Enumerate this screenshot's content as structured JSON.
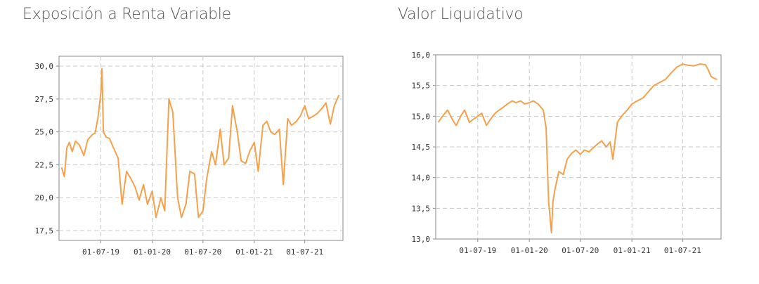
{
  "chart_data": [
    {
      "type": "line",
      "title": "Exposición a Renta Variable",
      "xlabel": "",
      "ylabel": "",
      "x_ticks": [
        "01-07-19",
        "01-01-20",
        "01-07-20",
        "01-01-21",
        "01-07-21"
      ],
      "y_ticks": [
        "30,0",
        "27,5",
        "25,0",
        "22,5",
        "20,0",
        "17,5"
      ],
      "ylim": [
        16.75,
        30.75
      ],
      "xlim": [
        "2019-02-01",
        "2021-11-15"
      ],
      "grid": true,
      "line_color": "#f7a04a",
      "series": [
        {
          "x": [
            "2019-02-10",
            "2019-02-20",
            "2019-03-01",
            "2019-03-10",
            "2019-03-20",
            "2019-04-01",
            "2019-04-15",
            "2019-05-01",
            "2019-05-15",
            "2019-06-01",
            "2019-06-10",
            "2019-06-20",
            "2019-07-01",
            "2019-07-05",
            "2019-07-10",
            "2019-07-20",
            "2019-08-01",
            "2019-08-15",
            "2019-09-01",
            "2019-09-15",
            "2019-10-01",
            "2019-10-15",
            "2019-11-01",
            "2019-11-15",
            "2019-12-01",
            "2019-12-15",
            "2020-01-01",
            "2020-01-15",
            "2020-02-01",
            "2020-02-15",
            "2020-03-01",
            "2020-03-15",
            "2020-04-01",
            "2020-04-15",
            "2020-05-01",
            "2020-05-15",
            "2020-06-01",
            "2020-06-15",
            "2020-07-01",
            "2020-07-15",
            "2020-08-01",
            "2020-08-15",
            "2020-09-01",
            "2020-09-15",
            "2020-10-01",
            "2020-10-15",
            "2020-11-01",
            "2020-11-15",
            "2020-12-01",
            "2020-12-15",
            "2021-01-01",
            "2021-01-15",
            "2021-02-01",
            "2021-02-15",
            "2021-03-01",
            "2021-03-15",
            "2021-04-01",
            "2021-04-15",
            "2021-05-01",
            "2021-05-15",
            "2021-06-01",
            "2021-06-15",
            "2021-07-01",
            "2021-07-15",
            "2021-08-01",
            "2021-08-15",
            "2021-09-01",
            "2021-09-15",
            "2021-10-01",
            "2021-10-15",
            "2021-11-01"
          ],
          "y": [
            22.3,
            21.6,
            23.8,
            24.2,
            23.5,
            24.3,
            24.0,
            23.2,
            24.4,
            24.8,
            24.9,
            26.0,
            28.0,
            29.8,
            25.0,
            24.6,
            24.5,
            23.8,
            23.0,
            19.5,
            22.0,
            21.5,
            20.8,
            19.8,
            21.0,
            19.5,
            20.5,
            18.5,
            20.0,
            19.0,
            27.5,
            26.5,
            20.0,
            18.5,
            19.5,
            22.0,
            21.8,
            18.5,
            19.0,
            21.5,
            23.5,
            22.5,
            25.2,
            22.5,
            23.0,
            27.0,
            25.0,
            22.8,
            22.6,
            23.5,
            24.2,
            22.0,
            25.5,
            25.8,
            25.0,
            24.8,
            25.2,
            21.0,
            26.0,
            25.5,
            25.8,
            26.2,
            27.0,
            26.0,
            26.2,
            26.4,
            26.8,
            27.2,
            25.6,
            27.0,
            27.8
          ]
        }
      ]
    },
    {
      "type": "line",
      "title": "Valor Liquidativo",
      "xlabel": "",
      "ylabel": "",
      "x_ticks": [
        "01-07-19",
        "01-01-20",
        "01-07-20",
        "01-01-21",
        "01-07-21"
      ],
      "y_ticks": [
        "16,0",
        "15,5",
        "15,0",
        "14,5",
        "14,0",
        "13,5",
        "13,0"
      ],
      "ylim": [
        13.0,
        16.0
      ],
      "xlim": [
        "2019-02-01",
        "2021-11-15"
      ],
      "grid": true,
      "line_color": "#f7a04a",
      "series": [
        {
          "x": [
            "2019-02-10",
            "2019-02-25",
            "2019-03-15",
            "2019-04-01",
            "2019-04-15",
            "2019-05-01",
            "2019-05-15",
            "2019-06-01",
            "2019-06-15",
            "2019-07-01",
            "2019-07-15",
            "2019-08-01",
            "2019-08-15",
            "2019-09-01",
            "2019-09-15",
            "2019-10-01",
            "2019-10-15",
            "2019-11-01",
            "2019-11-15",
            "2019-12-01",
            "2019-12-15",
            "2020-01-01",
            "2020-01-15",
            "2020-02-01",
            "2020-02-20",
            "2020-03-01",
            "2020-03-10",
            "2020-03-20",
            "2020-03-25",
            "2020-04-01",
            "2020-04-15",
            "2020-05-01",
            "2020-05-15",
            "2020-06-01",
            "2020-06-15",
            "2020-07-01",
            "2020-07-15",
            "2020-08-01",
            "2020-08-15",
            "2020-09-01",
            "2020-09-15",
            "2020-10-01",
            "2020-10-15",
            "2020-10-25",
            "2020-11-10",
            "2020-11-25",
            "2020-12-15",
            "2021-01-01",
            "2021-01-20",
            "2021-02-10",
            "2021-03-01",
            "2021-03-20",
            "2021-04-10",
            "2021-05-01",
            "2021-05-20",
            "2021-06-10",
            "2021-07-01",
            "2021-07-20",
            "2021-08-10",
            "2021-09-01",
            "2021-09-20",
            "2021-10-01",
            "2021-10-10",
            "2021-10-20",
            "2021-11-01"
          ],
          "y": [
            14.9,
            15.0,
            15.1,
            14.95,
            14.85,
            15.0,
            15.1,
            14.9,
            14.95,
            15.0,
            15.05,
            14.85,
            14.95,
            15.05,
            15.1,
            15.15,
            15.2,
            15.25,
            15.22,
            15.25,
            15.2,
            15.22,
            15.25,
            15.2,
            15.1,
            14.8,
            13.6,
            13.1,
            13.6,
            13.8,
            14.1,
            14.05,
            14.3,
            14.4,
            14.45,
            14.38,
            14.45,
            14.42,
            14.48,
            14.55,
            14.6,
            14.5,
            14.58,
            14.3,
            14.9,
            15.0,
            15.1,
            15.2,
            15.25,
            15.3,
            15.4,
            15.5,
            15.55,
            15.6,
            15.7,
            15.8,
            15.85,
            15.83,
            15.82,
            15.85,
            15.84,
            15.75,
            15.65,
            15.62,
            15.6
          ]
        }
      ]
    }
  ]
}
